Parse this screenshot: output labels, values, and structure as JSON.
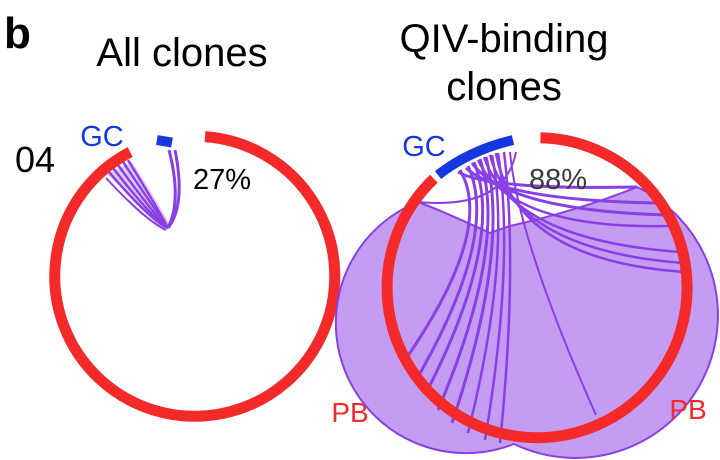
{
  "panel_label": "b",
  "row_label": "04",
  "colors": {
    "pb": "#f42a2a",
    "gc": "#1437e0",
    "chord_line": "#8a3fe6",
    "chord_fill": "#c49cf2",
    "text": "#000000",
    "percent_right": "#3a3a3a"
  },
  "left": {
    "title": "All clones",
    "gc_label": "GC",
    "pb_label": "PB",
    "percent": "27%",
    "gc_fraction_shared": 0.27
  },
  "right": {
    "title_line1": "QIV-binding",
    "title_line2": "clones",
    "gc_label": "GC",
    "pb_label": "PB",
    "percent": "88%",
    "gc_fraction_shared": 0.88
  }
}
